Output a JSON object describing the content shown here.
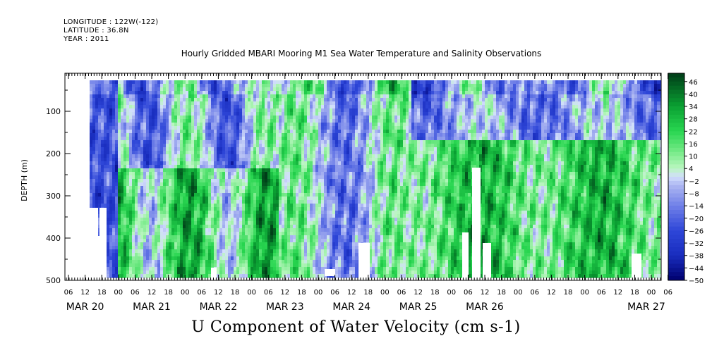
{
  "header": {
    "longitude": "LONGITUDE : 122W(-122)",
    "latitude": "LATITUDE : 36.8N",
    "year": "YEAR : 2011"
  },
  "chart_data": {
    "type": "heatmap",
    "title": "Hourly Gridded MBARI Mooring M1 Sea Water Temperature and Salinity Observations",
    "variable_title": "U Component of Water Velocity (cm s-1)",
    "ylabel": "DEPTH (m)",
    "y_ticks": [
      100,
      200,
      300,
      400,
      500
    ],
    "ylim": [
      500,
      10
    ],
    "x_hour_ticks": [
      "06",
      "12",
      "18",
      "00",
      "06",
      "12",
      "18",
      "00",
      "06",
      "12",
      "18",
      "00",
      "06",
      "12",
      "18",
      "00",
      "06",
      "12",
      "18",
      "00",
      "06",
      "12",
      "18",
      "00",
      "06",
      "12",
      "18",
      "00",
      "06",
      "12",
      "18",
      "00",
      "06",
      "12",
      "18",
      "00",
      "06"
    ],
    "x_date_labels": [
      "MAR 20",
      "MAR 21",
      "MAR 22",
      "MAR 23",
      "MAR 24",
      "MAR 25",
      "MAR 26",
      "MAR 27"
    ],
    "colorbar_ticks": [
      46,
      40,
      34,
      28,
      22,
      16,
      10,
      4,
      -2,
      -8,
      -14,
      -20,
      -26,
      -32,
      -38,
      -44,
      -50
    ],
    "value_range": [
      -50,
      50
    ],
    "colors": {
      "negative_strong": "#00006e",
      "negative_mid": "#2e46d8",
      "negative_weak": "#aeb8f2",
      "near_zero": "#dfe8ff",
      "positive_weak": "#9ef0a8",
      "positive_mid": "#18d24a",
      "positive_strong": "#003c18"
    }
  }
}
